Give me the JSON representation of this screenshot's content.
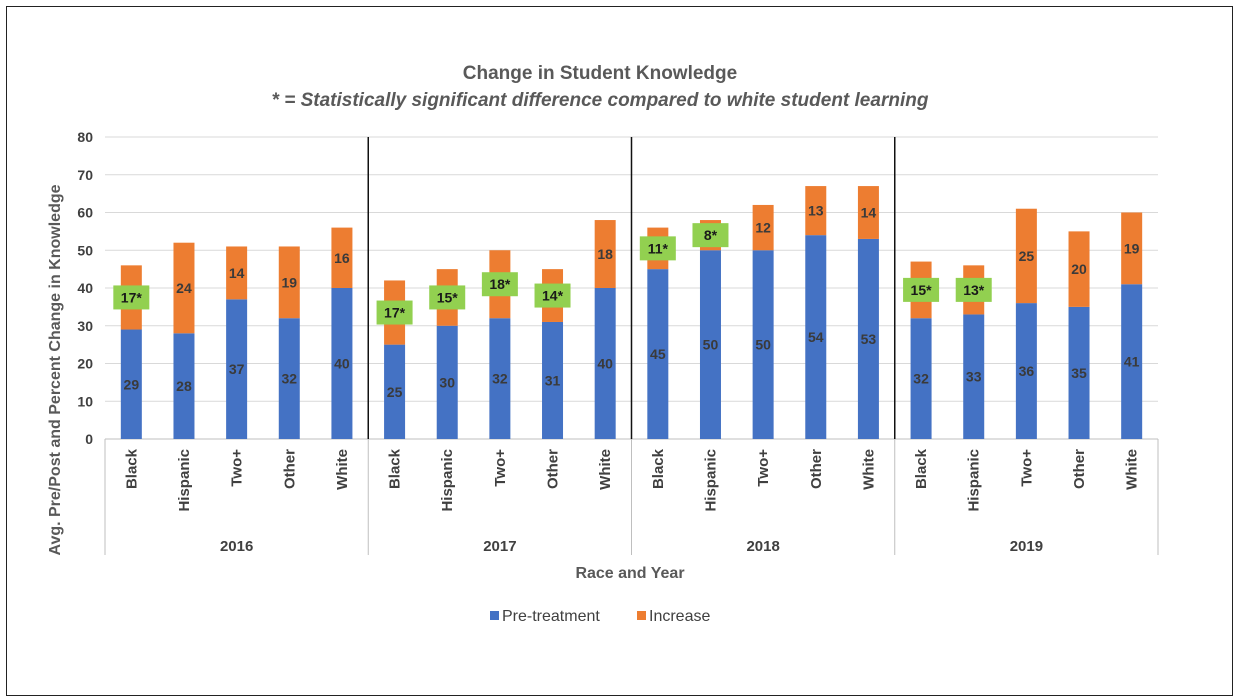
{
  "chart_data": {
    "type": "bar",
    "stacked": true,
    "title": "Change in Student Knowledge",
    "subtitle": "* = Statistically significant difference compared to white student learning",
    "xlabel": "Race and Year",
    "ylabel": "Avg. Pre/Post and Percent Change in Knowledge",
    "ylim": [
      0,
      80
    ],
    "yticks": [
      0,
      10,
      20,
      30,
      40,
      50,
      60,
      70,
      80
    ],
    "grid": true,
    "legend_position": "bottom",
    "groups": [
      {
        "label": "2016",
        "categories": [
          "Black",
          "Hispanic",
          "Two+",
          "Other",
          "White"
        ]
      },
      {
        "label": "2017",
        "categories": [
          "Black",
          "Hispanic",
          "Two+",
          "Other",
          "White"
        ]
      },
      {
        "label": "2018",
        "categories": [
          "Black",
          "Hispanic",
          "Two+",
          "Other",
          "White"
        ]
      },
      {
        "label": "2019",
        "categories": [
          "Black",
          "Hispanic",
          "Two+",
          "Other",
          "White"
        ]
      }
    ],
    "series": [
      {
        "name": "Pre-treatment",
        "color": "#4472C4",
        "values": [
          29,
          28,
          37,
          32,
          40,
          25,
          30,
          32,
          31,
          40,
          45,
          50,
          50,
          54,
          53,
          32,
          33,
          36,
          35,
          41
        ]
      },
      {
        "name": "Increase",
        "color": "#ED7D31",
        "values": [
          17,
          24,
          14,
          19,
          16,
          17,
          15,
          18,
          14,
          18,
          11,
          8,
          12,
          13,
          14,
          15,
          13,
          25,
          20,
          19
        ]
      }
    ],
    "increase_labels": [
      "17*",
      "24",
      "14",
      "19",
      "16",
      "17*",
      "15*",
      "18*",
      "14*",
      "18",
      "11*",
      "8*",
      "12",
      "13",
      "14",
      "15*",
      "13*",
      "25",
      "20",
      "19"
    ],
    "significant": [
      true,
      false,
      false,
      false,
      false,
      true,
      true,
      true,
      true,
      false,
      true,
      true,
      false,
      false,
      false,
      true,
      true,
      false,
      false,
      false
    ],
    "highlight_color": "#92D050"
  }
}
